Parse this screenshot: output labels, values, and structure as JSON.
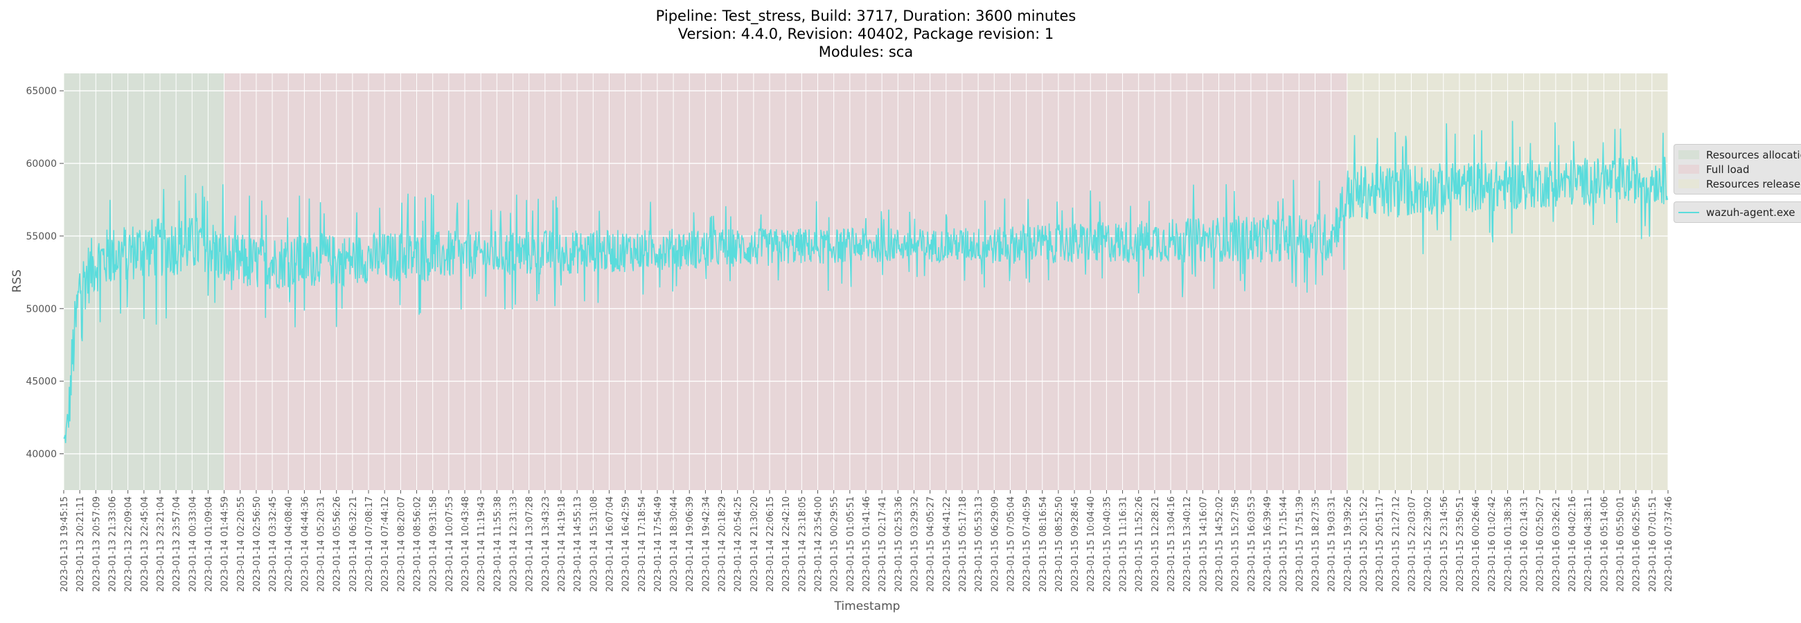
{
  "chart_data": {
    "type": "line",
    "title_lines": [
      "Pipeline: Test_stress, Build: 3717, Duration: 3600 minutes",
      "Version: 4.4.0, Revision: 40402, Package revision: 1",
      "Modules: sca"
    ],
    "xlabel": "Timestamp",
    "ylabel": "RSS",
    "ylim": [
      37500,
      66200
    ],
    "yticks": [
      40000,
      45000,
      50000,
      55000,
      60000,
      65000
    ],
    "grid": true,
    "legend_placement": "outside-right",
    "phases": [
      {
        "name": "Resources allocation",
        "start_index": 0,
        "end_index": 10,
        "color": "#d7e0d6"
      },
      {
        "name": "Full load",
        "start_index": 10,
        "end_index": 80,
        "color": "#e7d6d8"
      },
      {
        "name": "Resources release",
        "start_index": 80,
        "end_index": 100,
        "color": "#e6e6d7"
      }
    ],
    "x_ticks": [
      "2023-01-13 19:45:15",
      "2023-01-13 20:21:11",
      "2023-01-13 20:57:09",
      "2023-01-13 21:33:06",
      "2023-01-13 22:09:04",
      "2023-01-13 22:45:04",
      "2023-01-13 23:21:04",
      "2023-01-13 23:57:04",
      "2023-01-14 00:33:04",
      "2023-01-14 01:09:04",
      "2023-01-14 01:44:59",
      "2023-01-14 02:20:55",
      "2023-01-14 02:56:50",
      "2023-01-14 03:32:45",
      "2023-01-14 04:08:40",
      "2023-01-14 04:44:36",
      "2023-01-14 05:20:31",
      "2023-01-14 05:56:26",
      "2023-01-14 06:32:21",
      "2023-01-14 07:08:17",
      "2023-01-14 07:44:12",
      "2023-01-14 08:20:07",
      "2023-01-14 08:56:02",
      "2023-01-14 09:31:58",
      "2023-01-14 10:07:53",
      "2023-01-14 10:43:48",
      "2023-01-14 11:19:43",
      "2023-01-14 11:55:38",
      "2023-01-14 12:31:33",
      "2023-01-14 13:07:28",
      "2023-01-14 13:43:23",
      "2023-01-14 14:19:18",
      "2023-01-14 14:55:13",
      "2023-01-14 15:31:08",
      "2023-01-14 16:07:04",
      "2023-01-14 16:42:59",
      "2023-01-14 17:18:54",
      "2023-01-14 17:54:49",
      "2023-01-14 18:30:44",
      "2023-01-14 19:06:39",
      "2023-01-14 19:42:34",
      "2023-01-14 20:18:29",
      "2023-01-14 20:54:25",
      "2023-01-14 21:30:20",
      "2023-01-14 22:06:15",
      "2023-01-14 22:42:10",
      "2023-01-14 23:18:05",
      "2023-01-14 23:54:00",
      "2023-01-15 00:29:55",
      "2023-01-15 01:05:51",
      "2023-01-15 01:41:46",
      "2023-01-15 02:17:41",
      "2023-01-15 02:53:36",
      "2023-01-15 03:29:32",
      "2023-01-15 04:05:27",
      "2023-01-15 04:41:22",
      "2023-01-15 05:17:18",
      "2023-01-15 05:53:13",
      "2023-01-15 06:29:09",
      "2023-01-15 07:05:04",
      "2023-01-15 07:40:59",
      "2023-01-15 08:16:54",
      "2023-01-15 08:52:50",
      "2023-01-15 09:28:45",
      "2023-01-15 10:04:40",
      "2023-01-15 10:40:35",
      "2023-01-15 11:16:31",
      "2023-01-15 11:52:26",
      "2023-01-15 12:28:21",
      "2023-01-15 13:04:16",
      "2023-01-15 13:40:12",
      "2023-01-15 14:16:07",
      "2023-01-15 14:52:02",
      "2023-01-15 15:27:58",
      "2023-01-15 16:03:53",
      "2023-01-15 16:39:49",
      "2023-01-15 17:15:44",
      "2023-01-15 17:51:39",
      "2023-01-15 18:27:35",
      "2023-01-15 19:03:31",
      "2023-01-15 19:39:26",
      "2023-01-15 20:15:22",
      "2023-01-15 20:51:17",
      "2023-01-15 21:27:12",
      "2023-01-15 22:03:07",
      "2023-01-15 22:39:02",
      "2023-01-15 23:14:56",
      "2023-01-15 23:50:51",
      "2023-01-16 00:26:46",
      "2023-01-16 01:02:42",
      "2023-01-16 01:38:36",
      "2023-01-16 02:14:31",
      "2023-01-16 02:50:27",
      "2023-01-16 03:26:21",
      "2023-01-16 04:02:16",
      "2023-01-16 04:38:11",
      "2023-01-16 05:14:06",
      "2023-01-16 05:50:01",
      "2023-01-16 06:25:56",
      "2023-01-16 07:01:51",
      "2023-01-16 07:37:46"
    ],
    "series": [
      {
        "name": "wazuh-agent.exe",
        "color": "#5adcdc",
        "values": [
          40800,
          51500,
          53200,
          53600,
          53900,
          54100,
          54200,
          54300,
          54400,
          54500,
          53300,
          53200,
          53100,
          53200,
          53300,
          53200,
          53400,
          53300,
          53400,
          53500,
          53500,
          53600,
          53500,
          53600,
          53700,
          53600,
          53700,
          53800,
          53800,
          53800,
          53900,
          53900,
          53900,
          54000,
          53900,
          54000,
          54000,
          54100,
          54100,
          54100,
          54100,
          54200,
          54200,
          54200,
          54200,
          54300,
          54300,
          54300,
          54300,
          54400,
          54300,
          54400,
          54400,
          54400,
          54300,
          54400,
          54400,
          54400,
          54300,
          54400,
          54500,
          54500,
          54500,
          54500,
          54500,
          54600,
          54600,
          54600,
          54700,
          54700,
          54700,
          54700,
          54800,
          54800,
          54800,
          54800,
          54900,
          54900,
          54900,
          54900,
          57800,
          58000,
          58100,
          58000,
          58200,
          58300,
          58200,
          58300,
          58400,
          58400,
          58500,
          58500,
          58600,
          58700,
          58700,
          58800,
          58700,
          58800,
          58900,
          58900,
          58800
        ],
        "spread": [
          5000,
          4200,
          3800,
          3800,
          3700,
          3800,
          3800,
          3700,
          3600,
          3600,
          3700,
          3600,
          3500,
          3500,
          3400,
          3400,
          3300,
          3300,
          3200,
          3200,
          3200,
          3200,
          3100,
          3100,
          3100,
          3000,
          3000,
          3000,
          2900,
          2900,
          2800,
          2800,
          2800,
          2700,
          2700,
          2700,
          2600,
          2600,
          2600,
          2500,
          2500,
          2500,
          2400,
          2400,
          2400,
          2300,
          2300,
          2300,
          2200,
          2200,
          2200,
          2200,
          2100,
          2100,
          2100,
          2100,
          2200,
          2200,
          2300,
          2400,
          2500,
          2500,
          2500,
          2600,
          2600,
          2600,
          2700,
          2700,
          2700,
          2800,
          2800,
          2800,
          2900,
          2900,
          3000,
          3000,
          3000,
          3100,
          3100,
          3100,
          3500,
          3500,
          3400,
          3400,
          3400,
          3300,
          3300,
          3300,
          3200,
          3200,
          3200,
          3100,
          3100,
          3100,
          3000,
          3000,
          3000,
          3000,
          3000,
          3000,
          3000
        ]
      }
    ]
  }
}
